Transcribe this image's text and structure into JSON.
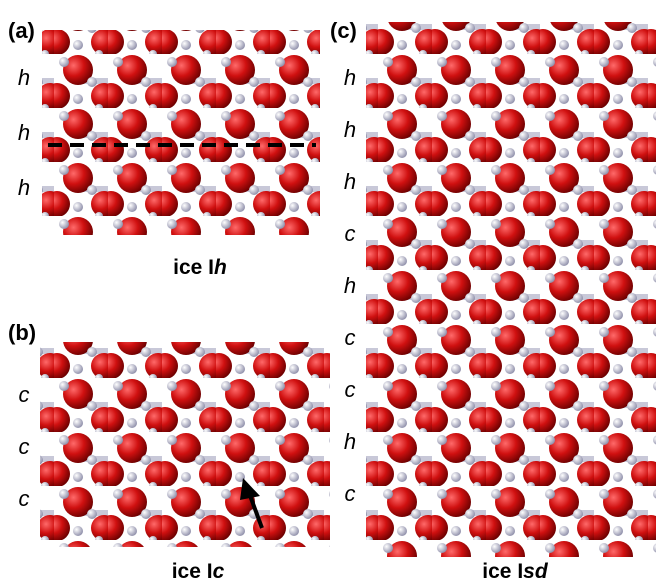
{
  "panels": [
    {
      "label": "(a)",
      "layers": [
        "h",
        "h",
        "h"
      ],
      "caption": {
        "prefix": "ice I",
        "suffix": "h"
      }
    },
    {
      "label": "(b)",
      "layers": [
        "c",
        "c",
        "c"
      ],
      "caption": {
        "prefix": "ice I",
        "suffix": "c"
      }
    },
    {
      "label": "(c)",
      "layers": [
        "h",
        "h",
        "h",
        "c",
        "h",
        "c",
        "c",
        "h",
        "c"
      ],
      "caption": {
        "prefix": "ice I",
        "suffix": "sd"
      }
    }
  ]
}
